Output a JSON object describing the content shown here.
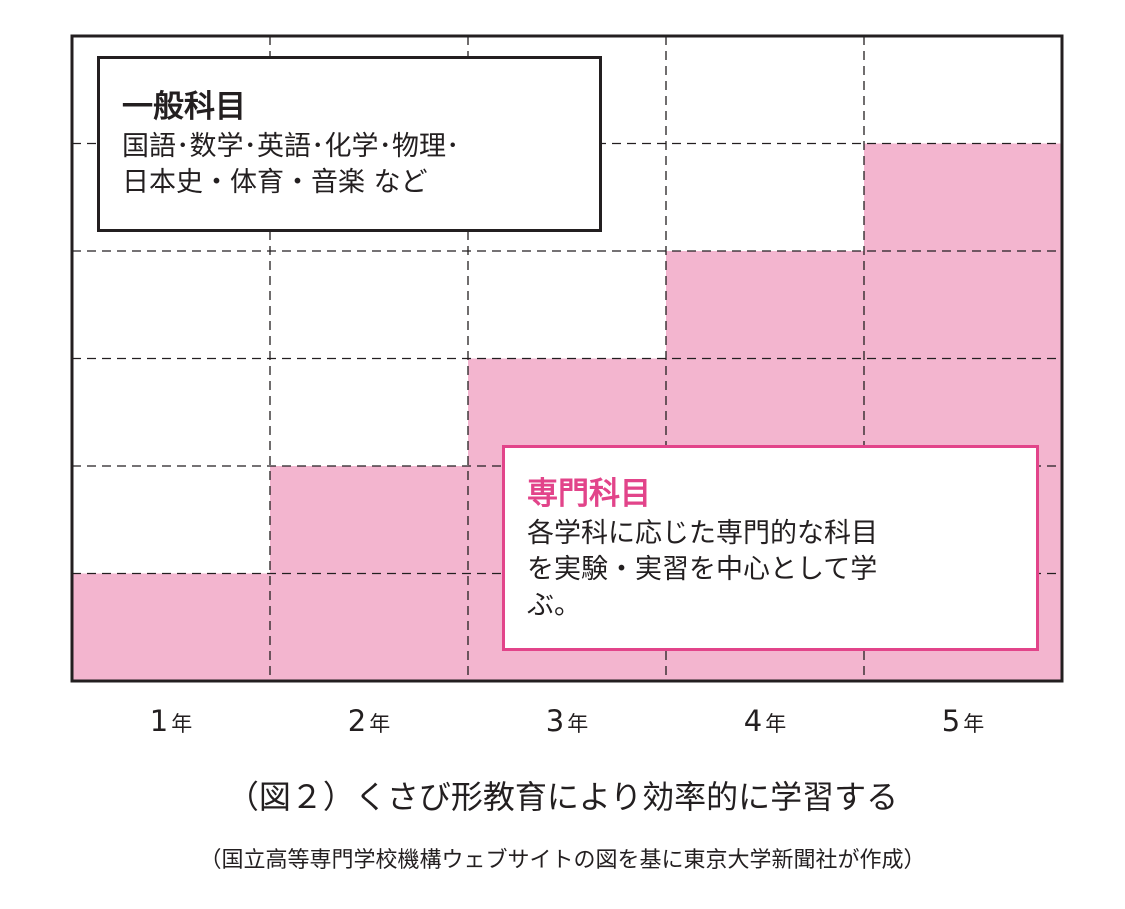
{
  "colors": {
    "specialized": "#f3b5cf",
    "specialized_title": "#e2448a",
    "frame": "#231f20"
  },
  "diagram": {
    "years": [
      "1",
      "2",
      "3",
      "4",
      "5"
    ],
    "year_unit": "年",
    "levels": 6,
    "specialized_levels": [
      1,
      2,
      3,
      4,
      5
    ]
  },
  "general": {
    "title": "一般科目",
    "line1": "国語･数学･英語･化学･物理･",
    "line2": "日本史・体育・音楽 など"
  },
  "specialized": {
    "title": "専門科目",
    "line1": "各学科に応じた専門的な科目",
    "line2": "を実験・実習を中心として学",
    "line3": "ぶ。"
  },
  "caption": "（図２）くさび形教育により効率的に学習する",
  "source": "（国立高等専門学校機構ウェブサイトの図を基に東京大学新聞社が作成）"
}
